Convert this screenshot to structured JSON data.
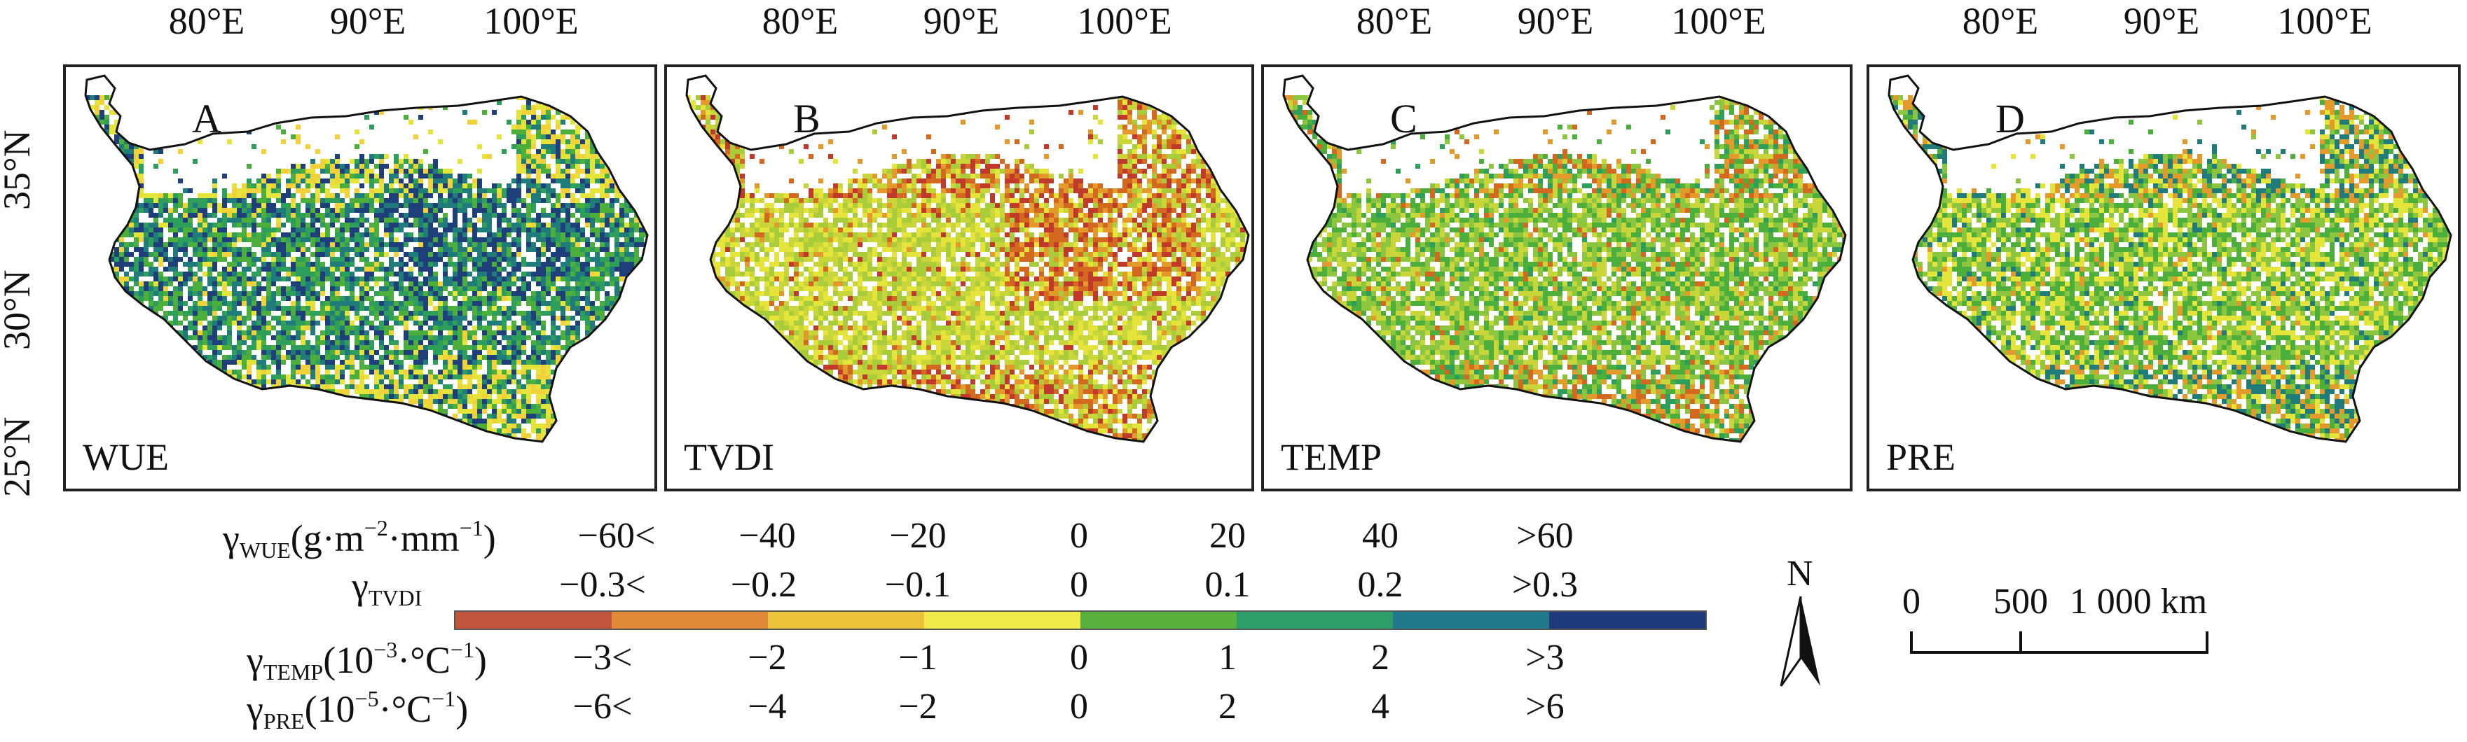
{
  "longitude_labels": [
    "80°E",
    "90°E",
    "100°E"
  ],
  "latitude_labels": [
    "25°N",
    "30°N",
    "35°N"
  ],
  "panels": [
    {
      "letter": "A",
      "name": "WUE",
      "dominant": [
        "#4caf3c",
        "#2e9e5b",
        "#1f7c7a",
        "#1e3f7a"
      ],
      "accent": [
        "#e4e43a",
        "#f2d23a"
      ]
    },
    {
      "letter": "B",
      "name": "TVDI",
      "dominant": [
        "#c8d63a",
        "#a9cc3a",
        "#e4e43a"
      ],
      "accent": [
        "#d2691e",
        "#c0392b",
        "#e39a2a"
      ]
    },
    {
      "letter": "C",
      "name": "TEMP",
      "dominant": [
        "#8cc63f",
        "#4caf3c",
        "#c8d63a"
      ],
      "accent": [
        "#d2691e",
        "#e39a2a",
        "#2e9e5b"
      ]
    },
    {
      "letter": "D",
      "name": "PRE",
      "dominant": [
        "#8cc63f",
        "#4caf3c",
        "#e4e43a"
      ],
      "accent": [
        "#1f7c7a",
        "#e39a2a"
      ]
    }
  ],
  "legend": {
    "rows": [
      {
        "symbol": "γ",
        "sub": "WUE",
        "unit_open": "(g·m",
        "sup1": "−2",
        "unit_mid": "·mm",
        "sup2": "−1",
        "unit_close": ")",
        "ticks": [
          "−60<",
          "−40",
          "−20",
          "0",
          "20",
          "40",
          ">60"
        ]
      },
      {
        "symbol": "γ",
        "sub": "TVDI",
        "ticks": [
          "−0.3<",
          "−0.2",
          "−0.1",
          "0",
          "0.1",
          "0.2",
          ">0.3"
        ]
      },
      {
        "symbol": "γ",
        "sub": "TEMP",
        "unit_open": "(10",
        "sup1": "−3",
        "unit_mid": "·°C",
        "sup2": "−1",
        "unit_close": ")",
        "ticks": [
          "−3<",
          "−2",
          "−1",
          "0",
          "1",
          "2",
          ">3"
        ]
      },
      {
        "symbol": "γ",
        "sub": "PRE",
        "unit_open": "(10",
        "sup1": "−5",
        "unit_mid": "·°C",
        "sup2": "−1",
        "unit_close": ")",
        "ticks": [
          "−6<",
          "−4",
          "−2",
          "0",
          "2",
          "4",
          ">6"
        ]
      }
    ],
    "colorbar": [
      "#c0543c",
      "#e08a3a",
      "#ecc23a",
      "#f0ea4a",
      "#5ab13e",
      "#2f9e6a",
      "#23798c",
      "#1e3a7a"
    ]
  },
  "north_arrow": {
    "label": "N"
  },
  "scale_bar": {
    "labels": [
      "0",
      "500",
      "1 000 km"
    ]
  }
}
